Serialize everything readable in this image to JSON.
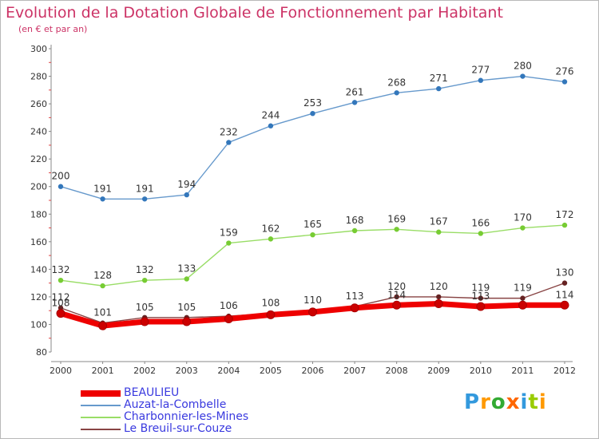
{
  "header": {
    "title": "Evolution de la Dotation Globale de Fonctionnement par Habitant",
    "subtitle": "(en € et par an)"
  },
  "colors": {
    "title": "#cc3366",
    "axis": "#888888",
    "tick_label": "#333333",
    "legend_text": "#3a3adf"
  },
  "logo": {
    "text": "Proxiti",
    "letters": [
      "P",
      "r",
      "o",
      "x",
      "i",
      "t",
      "i"
    ],
    "colors": [
      "#3399dd",
      "#ff9900",
      "#33aa33",
      "#ff6600",
      "#3399dd",
      "#99cc00",
      "#ff9900"
    ]
  },
  "chart_data": {
    "type": "line",
    "title": "Evolution de la Dotation Globale de Fonctionnement par Habitant",
    "subtitle": "(en € et par an)",
    "x": [
      "2000",
      "2001",
      "2002",
      "2003",
      "2004",
      "2005",
      "2006",
      "2007",
      "2008",
      "2009",
      "2010",
      "2011",
      "2012"
    ],
    "ylim": [
      80,
      300
    ],
    "yticks": [
      80,
      100,
      120,
      140,
      160,
      180,
      200,
      220,
      240,
      260,
      280,
      300
    ],
    "grid": false,
    "legend_position": "bottom-left",
    "series": [
      {
        "name": "BEAULIEU",
        "color": "#ee0000",
        "marker_color": "#cc0000",
        "thick": true,
        "values": [
          108,
          99,
          102,
          102,
          104,
          107,
          109,
          112,
          114,
          115,
          113,
          114,
          114
        ],
        "labels": [
          "108",
          "",
          "",
          "",
          "",
          "",
          "",
          "",
          "114",
          "",
          "113",
          "",
          "114"
        ]
      },
      {
        "name": "Auzat-la-Combelle",
        "color": "#6699cc",
        "marker_color": "#3377bb",
        "thick": false,
        "values": [
          200,
          191,
          191,
          194,
          232,
          244,
          253,
          261,
          268,
          271,
          277,
          280,
          276
        ],
        "labels": [
          "200",
          "191",
          "191",
          "194",
          "232",
          "244",
          "253",
          "261",
          "268",
          "271",
          "277",
          "280",
          "276"
        ]
      },
      {
        "name": "Charbonnier-les-Mines",
        "color": "#99dd66",
        "marker_color": "#77cc33",
        "thick": false,
        "values": [
          132,
          128,
          132,
          133,
          159,
          162,
          165,
          168,
          169,
          167,
          166,
          170,
          172
        ],
        "labels": [
          "132",
          "128",
          "132",
          "133",
          "159",
          "162",
          "165",
          "168",
          "169",
          "167",
          "166",
          "170",
          "172"
        ]
      },
      {
        "name": "Le Breuil-sur-Couze",
        "color": "#884444",
        "marker_color": "#662222",
        "thick": false,
        "values": [
          112,
          101,
          105,
          105,
          106,
          108,
          110,
          113,
          120,
          120,
          119,
          119,
          130
        ],
        "labels": [
          "112",
          "101",
          "105",
          "105",
          "106",
          "108",
          "110",
          "113",
          "120",
          "120",
          "119",
          "119",
          "130"
        ]
      }
    ]
  }
}
